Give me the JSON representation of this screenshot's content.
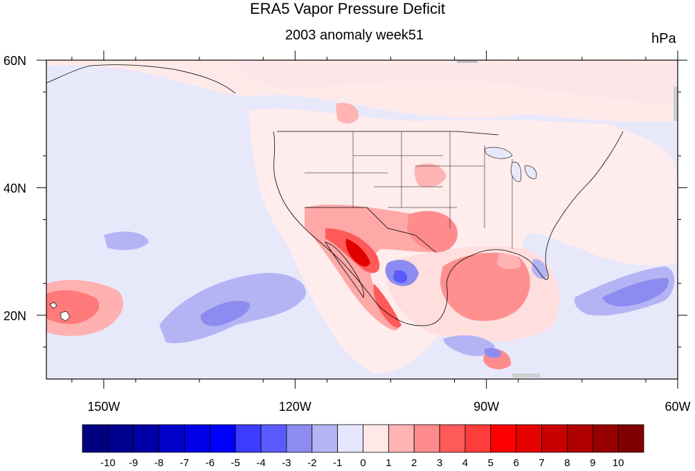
{
  "title": "ERA5 Vapor Pressure Deficit",
  "subtitle": "2003 anomaly week51",
  "units": "hPa",
  "axes": {
    "lat_labels": [
      {
        "text": "60N",
        "lat": 60
      },
      {
        "text": "40N",
        "lat": 40
      },
      {
        "text": "20N",
        "lat": 20
      }
    ],
    "lon_labels": [
      {
        "text": "150W",
        "lon": -150
      },
      {
        "text": "120W",
        "lon": -120
      },
      {
        "text": "90W",
        "lon": -90
      },
      {
        "text": "60W",
        "lon": -60
      }
    ],
    "lon_range": [
      -159,
      -60
    ],
    "lat_range": [
      10,
      60
    ]
  },
  "colorbar": {
    "labels": [
      "-10",
      "-9",
      "-8",
      "-7",
      "-6",
      "-5",
      "-4",
      "-3",
      "-2",
      "-1",
      "0",
      "1",
      "2",
      "3",
      "4",
      "5",
      "6",
      "7",
      "8",
      "9",
      "10"
    ],
    "colors": [
      "#000080",
      "#00008f",
      "#0000a6",
      "#0000c8",
      "#0000e6",
      "#0000ff",
      "#3c3cff",
      "#5a5aff",
      "#8c8cf0",
      "#b4b4f5",
      "#e6e6ff",
      "#ffe8e8",
      "#ffb4b4",
      "#ff8c8c",
      "#ff5a5a",
      "#ff3c3c",
      "#ff0000",
      "#e60000",
      "#c80000",
      "#b00000",
      "#960000",
      "#800000"
    ]
  },
  "colors": {
    "ocean_base": "#e6e6fa",
    "land_base": "#fff0f0"
  }
}
